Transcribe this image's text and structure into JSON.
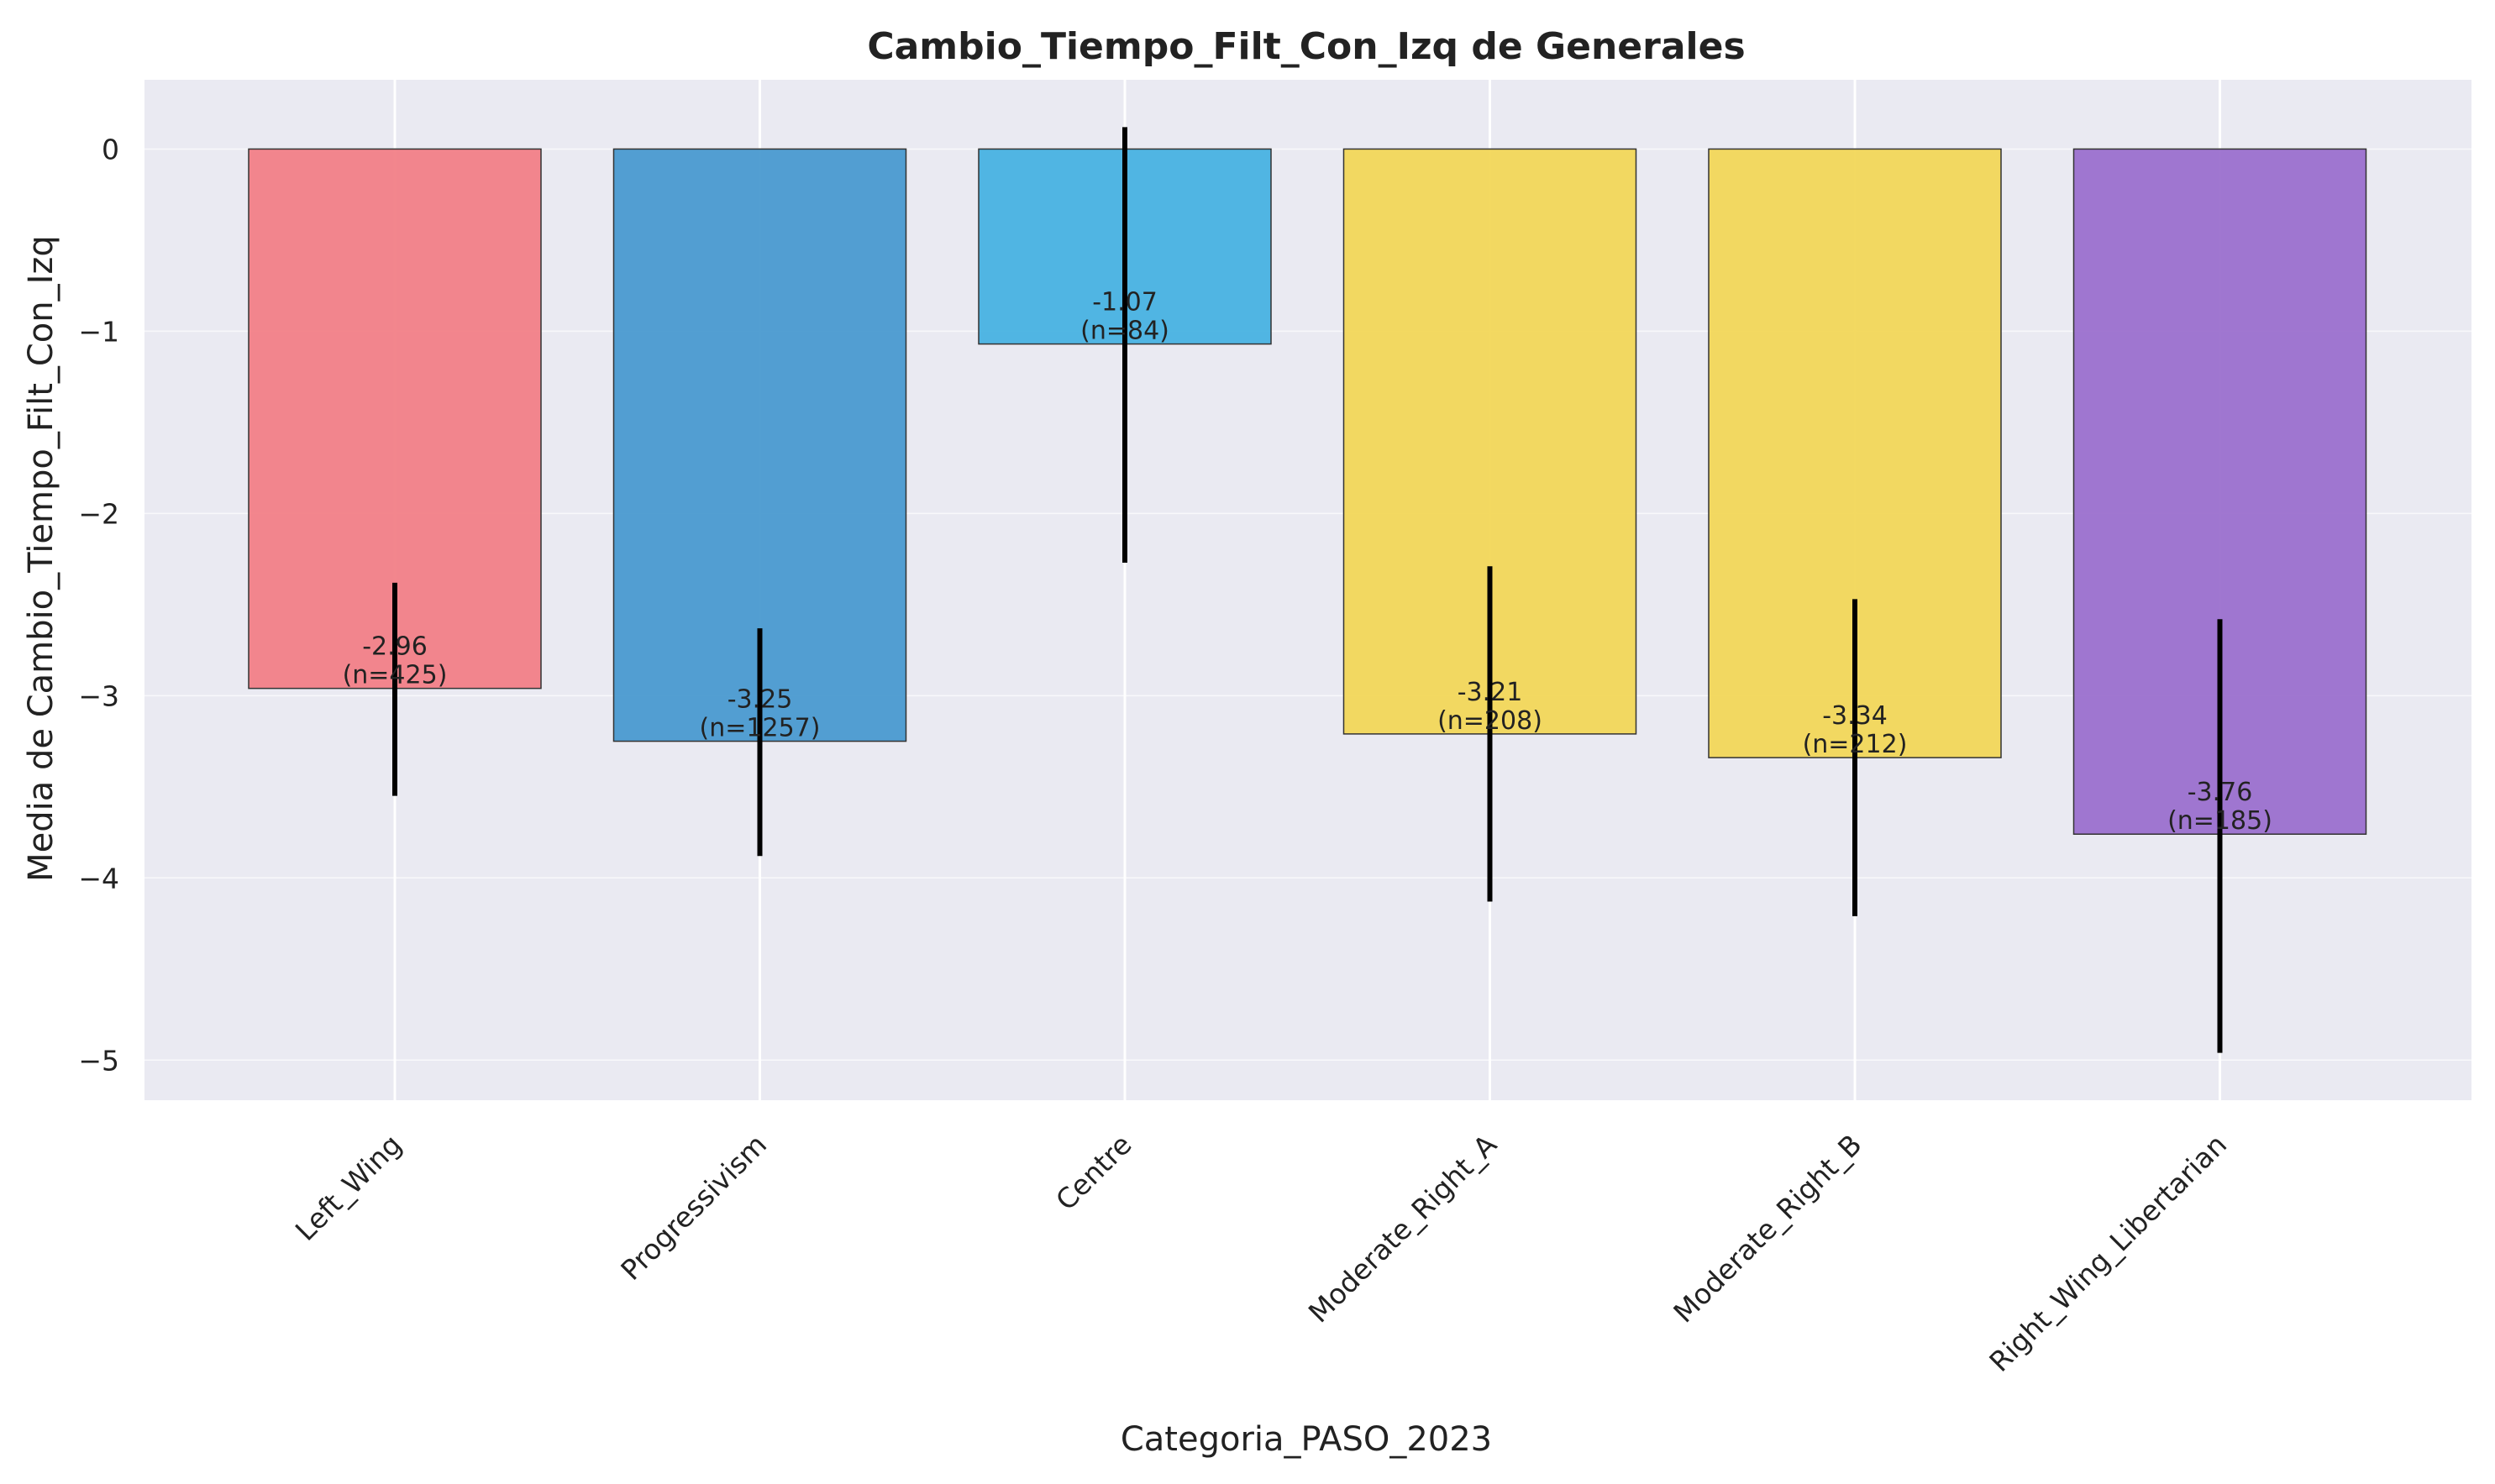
{
  "chart_data": {
    "type": "bar",
    "title": "Cambio_Tiempo_Filt_Con_Izq de Generales",
    "xlabel": "Categoria_PASO_2023",
    "ylabel": "Media de Cambio_Tiempo_Filt_Con_Izq",
    "categories": [
      "Left_Wing",
      "Progressivism",
      "Centre",
      "Moderate_Right_A",
      "Moderate_Right_B",
      "Right_Wing_Libertarian"
    ],
    "values": [
      -2.96,
      -3.25,
      -1.07,
      -3.21,
      -3.34,
      -3.76
    ],
    "value_labels": [
      "-2.96",
      "-3.25",
      "-1.07",
      "-3.21",
      "-3.34",
      "-3.76"
    ],
    "n_labels": [
      "(n=425)",
      "(n=1257)",
      "(n=84)",
      "(n=208)",
      "(n=212)",
      "(n=185)"
    ],
    "error_low": [
      -3.55,
      -3.88,
      -2.27,
      -4.13,
      -4.21,
      -4.96
    ],
    "error_high": [
      -2.38,
      -2.63,
      0.12,
      -2.29,
      -2.47,
      -2.58
    ],
    "colors": [
      "#f27f87",
      "#4a9ad0",
      "#48b2e2",
      "#f2d759",
      "#f2d759",
      "#9b70cd"
    ],
    "yticks": [
      0,
      -1,
      -2,
      -3,
      -4,
      -5
    ],
    "ytick_labels": [
      "0",
      "−1",
      "−2",
      "−3",
      "−4",
      "−5"
    ],
    "ylim": [
      -5.22,
      0.38
    ],
    "grid": true,
    "background": "#eaeaf2"
  }
}
